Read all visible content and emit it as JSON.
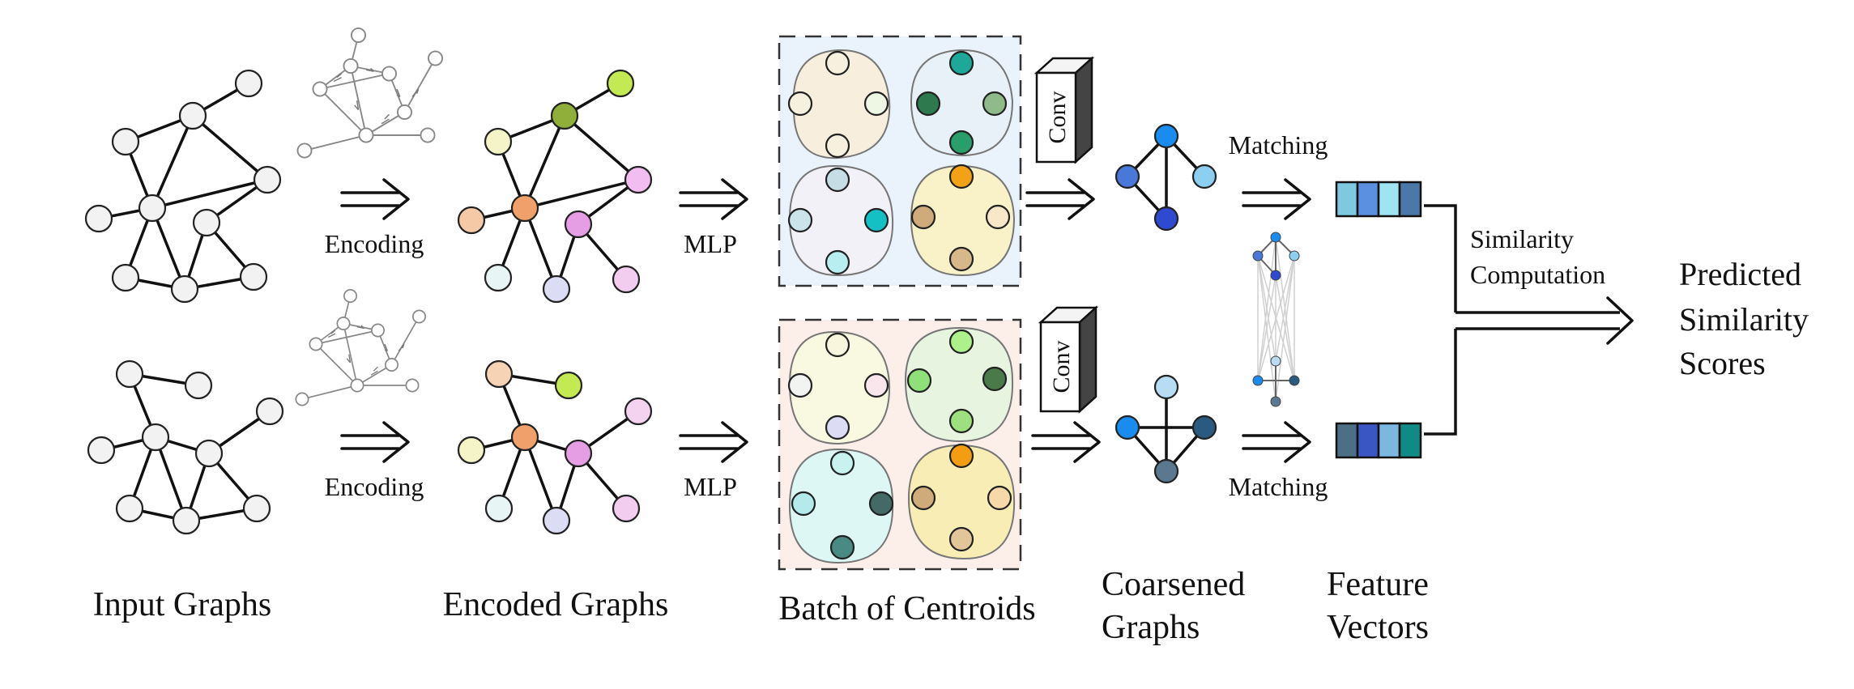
{
  "labels": {
    "input_graphs": "Input Graphs",
    "encoded_graphs": "Encoded Graphs",
    "batch_of_centroids": "Batch of Centroids",
    "coarsened_graphs_l1": "Coarsened",
    "coarsened_graphs_l2": "Graphs",
    "feature_vectors_l1": "Feature",
    "feature_vectors_l2": "Vectors",
    "predicted_l1": "Predicted",
    "predicted_l2": "Similarity",
    "predicted_l3": "Scores",
    "similarity_l1": "Similarity",
    "similarity_l2": "Computation",
    "encoding_top": "Encoding",
    "encoding_bottom": "Encoding",
    "mlp_top": "MLP",
    "mlp_bottom": "MLP",
    "matching_top": "Matching",
    "matching_bottom": "Matching",
    "conv_top": "Conv",
    "conv_bottom": "Conv"
  },
  "colors": {
    "node_default": "#f2f2f2",
    "panel_top_bg": "#eaf3fc",
    "panel_bottom_bg": "#fcefe9",
    "feature_top": [
      "#7fc9e0",
      "#5b8fe0",
      "#9fe4f0",
      "#4a78a8"
    ],
    "feature_bottom": [
      "#4d6f86",
      "#3a56c2",
      "#7cb7e0",
      "#0f8a84"
    ]
  }
}
